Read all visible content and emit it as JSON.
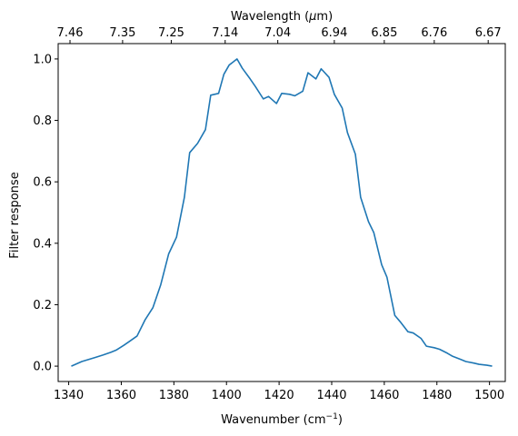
{
  "chart_data": {
    "type": "line",
    "title": "",
    "xlabel": {
      "base": "Wavenumber (cm",
      "sup": "−1",
      "close": ")"
    },
    "ylabel": "Filter response",
    "top_xlabel": {
      "base": "Wavelength (",
      "italic": "μ",
      "rest": "m)"
    },
    "xlim": [
      1336,
      1506
    ],
    "ylim": [
      -0.05,
      1.05
    ],
    "xticks": [
      1340,
      1360,
      1380,
      1400,
      1420,
      1440,
      1460,
      1480,
      1500
    ],
    "yticks": [
      0.0,
      0.2,
      0.4,
      0.6,
      0.8,
      1.0
    ],
    "xtick_labels": [
      "1340",
      "1360",
      "1380",
      "1400",
      "1420",
      "1440",
      "1460",
      "1480",
      "1500"
    ],
    "ytick_labels": [
      "0.0",
      "0.2",
      "0.4",
      "0.6",
      "0.8",
      "1.0"
    ],
    "top_xticks": [
      1340.5,
      1360.5,
      1379.0,
      1399.5,
      1419.5,
      1441.0,
      1460.0,
      1479.0,
      1499.5
    ],
    "top_xtick_labels": [
      "7.46",
      "7.35",
      "7.25",
      "7.14",
      "7.04",
      "6.94",
      "6.85",
      "6.76",
      "6.67"
    ],
    "grid": false,
    "line_color": "#1f77b4",
    "series": [
      {
        "x": [
          1341,
          1345,
          1350,
          1353,
          1356,
          1358,
          1361,
          1363,
          1366,
          1369,
          1372,
          1375,
          1378,
          1381,
          1384,
          1386,
          1389,
          1392,
          1394,
          1397,
          1399,
          1401,
          1404,
          1406,
          1409,
          1411,
          1414,
          1416,
          1419,
          1421,
          1424,
          1426,
          1429,
          1431,
          1434,
          1436,
          1439,
          1441,
          1444,
          1446,
          1449,
          1451,
          1454,
          1456,
          1459,
          1461,
          1464,
          1466,
          1469,
          1471,
          1474,
          1476,
          1479,
          1481,
          1484,
          1486,
          1489,
          1491,
          1494,
          1496,
          1499,
          1501
        ],
        "y": [
          0.0,
          0.015,
          0.028,
          0.036,
          0.045,
          0.052,
          0.068,
          0.08,
          0.098,
          0.15,
          0.19,
          0.265,
          0.365,
          0.42,
          0.55,
          0.695,
          0.725,
          0.77,
          0.882,
          0.888,
          0.95,
          0.98,
          1.0,
          0.97,
          0.935,
          0.91,
          0.87,
          0.878,
          0.855,
          0.888,
          0.885,
          0.88,
          0.895,
          0.955,
          0.935,
          0.968,
          0.94,
          0.885,
          0.84,
          0.76,
          0.69,
          0.55,
          0.47,
          0.435,
          0.33,
          0.29,
          0.165,
          0.145,
          0.112,
          0.108,
          0.09,
          0.065,
          0.06,
          0.055,
          0.042,
          0.032,
          0.022,
          0.015,
          0.01,
          0.006,
          0.003,
          0.0
        ]
      }
    ]
  }
}
